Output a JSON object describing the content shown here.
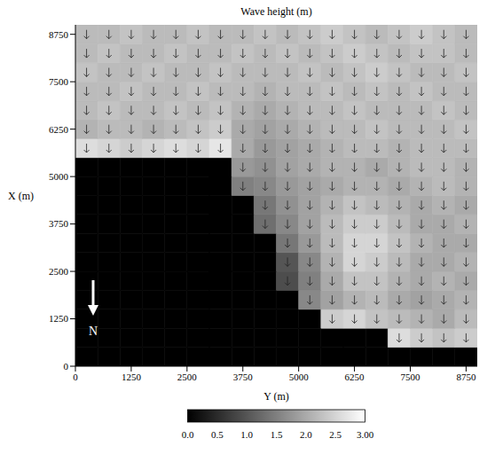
{
  "chart_data": {
    "type": "heatmap",
    "title": "Wave height (m)",
    "x_label": "Y (m)",
    "y_label": "X (m)",
    "xlim": [
      0,
      9000
    ],
    "ylim": [
      0,
      9000
    ],
    "xticks": [
      0,
      1250,
      2500,
      3750,
      5000,
      6250,
      7500,
      8750
    ],
    "yticks": [
      0,
      1250,
      2500,
      3750,
      5000,
      6250,
      7500,
      8750
    ],
    "grid": false,
    "annotations": [
      "N"
    ],
    "cells": {
      "x": [
        250,
        750,
        1250,
        1750,
        2250,
        2750,
        3250,
        3750,
        4250,
        4750,
        5250,
        5750,
        6250,
        6750,
        7250,
        7750,
        8250,
        8750
      ],
      "y": [
        250,
        750,
        1250,
        1750,
        2250,
        2750,
        3250,
        3750,
        4250,
        4750,
        5250,
        5750,
        6250,
        6750,
        7250,
        7750,
        8250,
        8750
      ],
      "values": [
        [
          null,
          null,
          null,
          null,
          null,
          null,
          null,
          null,
          null,
          null,
          null,
          null,
          null,
          null,
          null,
          null,
          null,
          null
        ],
        [
          null,
          null,
          null,
          null,
          null,
          null,
          null,
          null,
          null,
          null,
          null,
          null,
          null,
          null,
          2.6,
          2.4,
          2.3,
          2.4
        ],
        [
          null,
          null,
          null,
          null,
          null,
          null,
          null,
          null,
          null,
          null,
          null,
          2.4,
          2.5,
          2.3,
          2.2,
          2.1,
          2.0,
          2.2
        ],
        [
          null,
          null,
          null,
          null,
          null,
          null,
          null,
          null,
          null,
          null,
          1.6,
          1.9,
          2.1,
          2.2,
          2.0,
          1.9,
          2.0,
          2.1
        ],
        [
          null,
          null,
          null,
          null,
          null,
          null,
          null,
          null,
          null,
          0.9,
          1.5,
          2.0,
          2.3,
          2.3,
          2.1,
          2.0,
          2.1,
          2.0
        ],
        [
          null,
          null,
          null,
          null,
          null,
          null,
          null,
          null,
          null,
          1.0,
          1.6,
          2.1,
          2.5,
          2.4,
          2.2,
          2.0,
          2.0,
          2.1
        ],
        [
          null,
          null,
          null,
          null,
          null,
          null,
          null,
          null,
          null,
          1.4,
          1.8,
          2.2,
          2.5,
          2.5,
          2.3,
          2.1,
          2.0,
          2.0
        ],
        [
          null,
          null,
          null,
          null,
          null,
          null,
          null,
          null,
          1.3,
          1.6,
          1.9,
          2.2,
          2.4,
          2.4,
          2.2,
          2.0,
          2.0,
          2.1
        ],
        [
          null,
          null,
          null,
          null,
          null,
          null,
          null,
          null,
          1.4,
          1.7,
          1.9,
          2.1,
          2.3,
          2.2,
          2.1,
          2.0,
          2.1,
          2.0
        ],
        [
          null,
          null,
          null,
          null,
          null,
          null,
          null,
          1.5,
          1.6,
          1.8,
          1.9,
          2.0,
          2.1,
          2.1,
          2.0,
          2.1,
          2.2,
          2.1
        ],
        [
          null,
          null,
          null,
          null,
          null,
          null,
          null,
          1.8,
          1.7,
          1.9,
          2.0,
          2.1,
          2.1,
          2.0,
          2.1,
          2.2,
          2.2,
          2.1
        ],
        [
          2.6,
          2.5,
          2.4,
          2.5,
          2.6,
          2.5,
          2.7,
          2.0,
          1.8,
          1.9,
          2.0,
          2.1,
          2.2,
          2.2,
          2.1,
          2.2,
          2.2,
          2.2
        ],
        [
          2.1,
          2.2,
          2.2,
          2.1,
          2.2,
          2.3,
          2.4,
          2.0,
          1.9,
          2.0,
          2.1,
          2.2,
          2.2,
          2.3,
          2.2,
          2.2,
          2.2,
          2.3
        ],
        [
          2.2,
          2.3,
          2.2,
          2.2,
          2.3,
          2.2,
          2.3,
          2.1,
          2.0,
          2.1,
          2.2,
          2.2,
          2.3,
          2.2,
          2.2,
          2.2,
          2.3,
          2.2
        ],
        [
          2.2,
          2.2,
          2.3,
          2.2,
          2.2,
          2.3,
          2.2,
          2.2,
          2.1,
          2.2,
          2.2,
          2.3,
          2.2,
          2.3,
          2.2,
          2.3,
          2.2,
          2.2
        ],
        [
          2.3,
          2.2,
          2.2,
          2.3,
          2.2,
          2.2,
          2.3,
          2.2,
          2.2,
          2.2,
          2.3,
          2.2,
          2.3,
          2.4,
          2.3,
          2.2,
          2.2,
          2.3
        ],
        [
          2.2,
          2.3,
          2.2,
          2.2,
          2.3,
          2.2,
          2.2,
          2.3,
          2.2,
          2.3,
          2.2,
          2.3,
          2.4,
          2.3,
          2.2,
          2.3,
          2.3,
          2.2
        ],
        [
          2.2,
          2.2,
          2.3,
          2.2,
          2.2,
          2.3,
          2.2,
          2.2,
          2.3,
          2.2,
          2.3,
          2.4,
          2.3,
          2.2,
          2.3,
          2.4,
          2.3,
          2.2
        ]
      ]
    },
    "colorbar": {
      "lim": [
        0,
        3
      ],
      "ticks": [
        {
          "value": 0,
          "label": "0.0"
        },
        0.5,
        {
          "value": 1,
          "label": "1.0"
        },
        1.5,
        {
          "value": 2,
          "label": "2.0"
        },
        2.5,
        {
          "value": 3,
          "label": "3.00"
        }
      ]
    }
  }
}
